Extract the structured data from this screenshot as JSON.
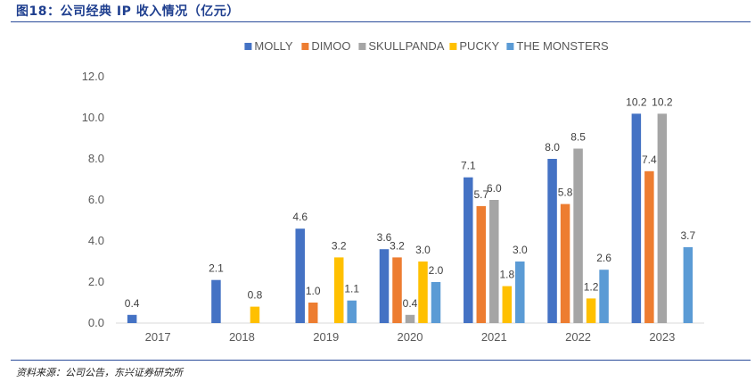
{
  "figure": {
    "title": "图18：公司经典 IP 收入情况（亿元）",
    "source": "资料来源：公司公告，东兴证券研究所"
  },
  "chart_data": {
    "type": "bar",
    "categories": [
      "2017",
      "2018",
      "2019",
      "2020",
      "2021",
      "2022",
      "2023"
    ],
    "ylim": [
      0,
      12
    ],
    "yticks": [
      "0.0",
      "2.0",
      "4.0",
      "6.0",
      "8.0",
      "10.0",
      "12.0"
    ],
    "grid": false,
    "legend_position": "top",
    "series": [
      {
        "name": "MOLLY",
        "color": "#4472c4",
        "values": [
          0.4,
          2.1,
          4.6,
          3.6,
          7.1,
          8.0,
          10.2
        ],
        "labels": [
          "0.4",
          "2.1",
          "4.6",
          "3.6",
          "7.1",
          "8.0",
          "10.2"
        ]
      },
      {
        "name": "DIMOO",
        "color": "#ed7d31",
        "values": [
          null,
          null,
          1.0,
          3.2,
          5.7,
          5.8,
          7.4
        ],
        "labels": [
          "",
          "",
          "1.0",
          "3.2",
          "5.7",
          "5.8",
          "7.4"
        ]
      },
      {
        "name": "SKULLPANDA",
        "color": "#a5a5a5",
        "values": [
          null,
          null,
          null,
          0.4,
          6.0,
          8.5,
          10.2
        ],
        "labels": [
          "",
          "",
          "",
          "0.4",
          "6.0",
          "8.5",
          "10.2"
        ]
      },
      {
        "name": "PUCKY",
        "color": "#ffc000",
        "values": [
          null,
          0.8,
          3.2,
          3.0,
          1.8,
          1.2,
          null
        ],
        "labels": [
          "",
          "0.8",
          "3.2",
          "3.0",
          "1.8",
          "1.2",
          ""
        ]
      },
      {
        "name": "THE MONSTERS",
        "color": "#5b9bd5",
        "values": [
          null,
          null,
          1.1,
          2.0,
          3.0,
          2.6,
          3.7
        ],
        "labels": [
          "",
          "",
          "1.1",
          "2.0",
          "3.0",
          "2.6",
          "3.7"
        ]
      }
    ]
  }
}
